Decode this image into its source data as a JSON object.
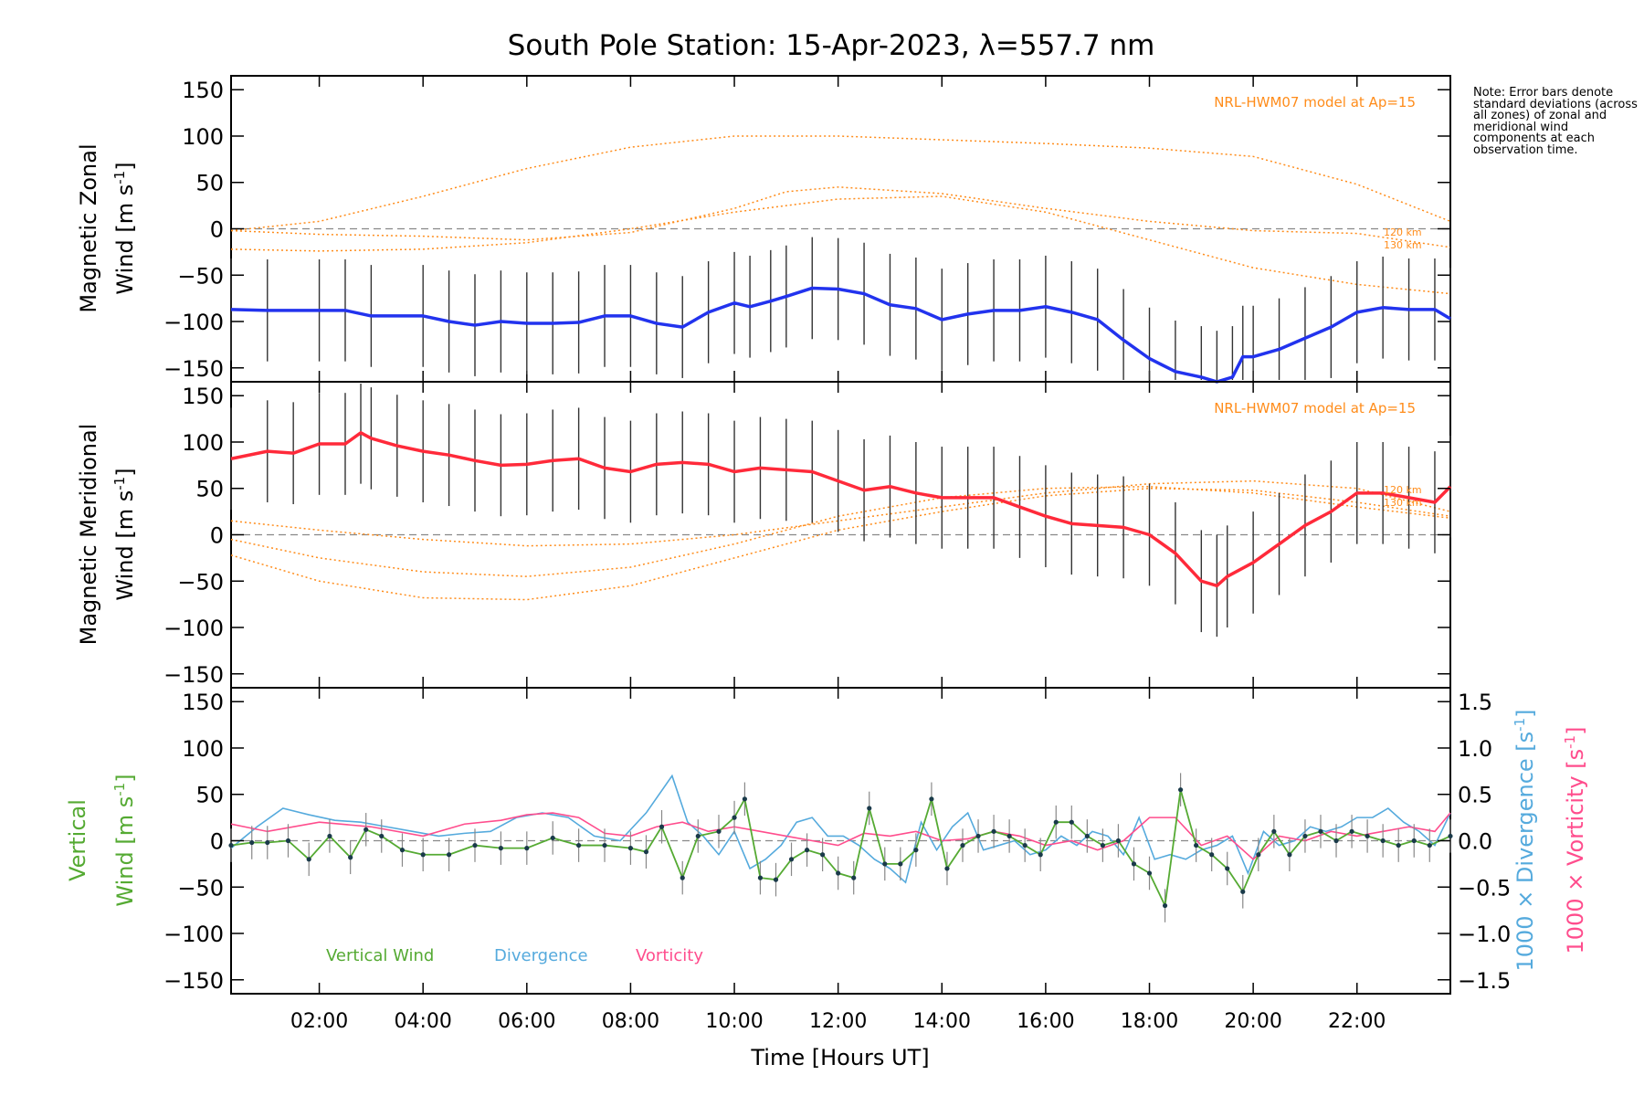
{
  "title": "South Pole Station: 15-Apr-2023, λ=557.7 nm",
  "note": "Note: Error bars denote standard deviations (across all zones) of zonal and meridional wind components at each observation time.",
  "colors": {
    "zonal": "#2233ee",
    "meridional": "#ff2a3a",
    "model": "#ff8c1a",
    "vertical": "#55aa33",
    "divergence": "#55aadd",
    "vorticity": "#ff4d8d",
    "zero": "#888888",
    "errbar": "#333333"
  },
  "chart_data": [
    {
      "type": "line",
      "panel": "zonal",
      "ylabel_line1": "Magnetic Zonal",
      "ylabel_line2": "Wind",
      "ylabel_units": "[m s",
      "ylabel_exp": "-1",
      "ylabel_close": "]",
      "model_label": "NRL-HWM07 model at Ap=15",
      "model_alt_labels": [
        "120 km",
        "130 km"
      ],
      "ylim": [
        -165,
        165
      ],
      "yticks": [
        150,
        100,
        50,
        0,
        -50,
        -100,
        -150
      ],
      "xlim": [
        0.3,
        23.8
      ],
      "series": [
        {
          "name": "Zonal Wind",
          "x": [
            0.3,
            1.0,
            2.0,
            2.5,
            3.0,
            4.0,
            4.5,
            5.0,
            5.5,
            6.0,
            6.5,
            7.0,
            7.5,
            8.0,
            8.5,
            9.0,
            9.5,
            10.0,
            10.3,
            10.7,
            11.0,
            11.5,
            12.0,
            12.5,
            13.0,
            13.5,
            14.0,
            14.5,
            15.0,
            15.5,
            16.0,
            16.5,
            17.0,
            17.5,
            18.0,
            18.5,
            19.0,
            19.3,
            19.6,
            19.8,
            20.0,
            20.5,
            21.0,
            21.5,
            22.0,
            22.5,
            23.0,
            23.5,
            23.8
          ],
          "y": [
            -87,
            -88,
            -88,
            -88,
            -94,
            -94,
            -100,
            -104,
            -100,
            -102,
            -102,
            -101,
            -94,
            -94,
            -102,
            -106,
            -90,
            -80,
            -84,
            -78,
            -73,
            -64,
            -65,
            -70,
            -82,
            -86,
            -98,
            -92,
            -88,
            -88,
            -84,
            -90,
            -98,
            -120,
            -140,
            -154,
            -160,
            -165,
            -160,
            -138,
            -138,
            -130,
            -118,
            -106,
            -90,
            -85,
            -87,
            -87,
            -97
          ]
        },
        {
          "name": "NRL-HWM07 model A",
          "x": [
            0.3,
            2,
            4,
            6,
            8,
            10,
            12,
            14,
            16,
            18,
            20,
            22,
            23.8
          ],
          "y": [
            -2,
            8,
            35,
            65,
            88,
            100,
            100,
            96,
            92,
            87,
            78,
            48,
            8
          ]
        },
        {
          "name": "NRL-HWM07 model B",
          "x": [
            0.3,
            2,
            4,
            6,
            8,
            10,
            11,
            12,
            14,
            16,
            18,
            20,
            22,
            23.8
          ],
          "y": [
            -2,
            -6,
            -8,
            -12,
            -4,
            22,
            40,
            45,
            38,
            22,
            8,
            -2,
            -5,
            -20
          ]
        },
        {
          "name": "NRL-HWM07 model C",
          "x": [
            0.3,
            2,
            4,
            6,
            8,
            10,
            12,
            14,
            16,
            18,
            20,
            22,
            23.8
          ],
          "y": [
            -22,
            -24,
            -22,
            -15,
            0,
            18,
            32,
            35,
            18,
            -12,
            -42,
            -60,
            -70
          ]
        }
      ]
    },
    {
      "type": "line",
      "panel": "meridional",
      "ylabel_line1": "Magnetic Meridional",
      "ylabel_line2": "Wind",
      "ylabel_units": "[m s",
      "ylabel_exp": "-1",
      "ylabel_close": "]",
      "model_label": "NRL-HWM07 model at Ap=15",
      "model_alt_labels": [
        "120 km",
        "130 km"
      ],
      "ylim": [
        -165,
        165
      ],
      "yticks": [
        150,
        100,
        50,
        0,
        -50,
        -100,
        -150
      ],
      "xlim": [
        0.3,
        23.8
      ],
      "series": [
        {
          "name": "Meridional Wind",
          "x": [
            0.3,
            1.0,
            1.5,
            2.0,
            2.5,
            2.8,
            3.0,
            3.5,
            4.0,
            4.5,
            5.0,
            5.5,
            6.0,
            6.5,
            7.0,
            7.5,
            8.0,
            8.5,
            9.0,
            9.5,
            10.0,
            10.5,
            11.0,
            11.5,
            12.0,
            12.5,
            13.0,
            13.5,
            14.0,
            14.5,
            15.0,
            15.5,
            16.0,
            16.5,
            17.0,
            17.5,
            18.0,
            18.5,
            19.0,
            19.3,
            19.5,
            20.0,
            20.5,
            21.0,
            21.5,
            22.0,
            22.5,
            23.0,
            23.5,
            23.8
          ],
          "y": [
            82,
            90,
            88,
            98,
            98,
            110,
            104,
            96,
            90,
            86,
            80,
            75,
            76,
            80,
            82,
            72,
            68,
            76,
            78,
            76,
            68,
            72,
            70,
            68,
            58,
            48,
            52,
            45,
            40,
            40,
            40,
            30,
            20,
            12,
            10,
            8,
            0,
            -20,
            -50,
            -55,
            -45,
            -30,
            -10,
            10,
            25,
            45,
            45,
            40,
            35,
            52
          ]
        },
        {
          "name": "NRL-HWM07 model A",
          "x": [
            0.3,
            2,
            4,
            6,
            8,
            10,
            12,
            14,
            16,
            18,
            20,
            22,
            23.8
          ],
          "y": [
            15,
            5,
            -5,
            -12,
            -10,
            0,
            15,
            30,
            45,
            55,
            58,
            50,
            25
          ]
        },
        {
          "name": "NRL-HWM07 model B",
          "x": [
            0.3,
            2,
            4,
            6,
            8,
            10,
            12,
            14,
            16,
            18,
            20,
            22,
            23.8
          ],
          "y": [
            -5,
            -25,
            -40,
            -45,
            -35,
            -10,
            20,
            40,
            50,
            52,
            45,
            30,
            18
          ]
        },
        {
          "name": "NRL-HWM07 model C",
          "x": [
            0.3,
            2,
            4,
            6,
            8,
            10,
            12,
            14,
            16,
            18,
            20,
            22,
            23.8
          ],
          "y": [
            -22,
            -50,
            -68,
            -70,
            -55,
            -25,
            5,
            25,
            42,
            50,
            48,
            35,
            20
          ]
        }
      ]
    },
    {
      "type": "line",
      "panel": "vertical",
      "ylabel_line1": "Vertical",
      "ylabel_line2": "Wind",
      "ylabel_units": "[m s",
      "ylabel_exp": "-1",
      "ylabel_close": "]",
      "right_label_div": "1000 × Divergence",
      "right_label_vort": "1000 × Vorticity",
      "right_units": "[s",
      "right_exp": "-1",
      "right_close": "]",
      "ylim": [
        -165,
        165
      ],
      "yticks": [
        150,
        100,
        50,
        0,
        -50,
        -100,
        -150
      ],
      "y2lim": [
        -1.65,
        1.65
      ],
      "y2ticks": [
        "1.5",
        "1.0",
        "0.5",
        "0.0",
        "−0.5",
        "−1.0",
        "−1.5"
      ],
      "y2tickvals": [
        1.5,
        1.0,
        0.5,
        0.0,
        -0.5,
        -1.0,
        -1.5
      ],
      "xlim": [
        0.3,
        23.8
      ],
      "xlabel": "Time [Hours UT]",
      "xticks": [
        "02:00",
        "04:00",
        "06:00",
        "08:00",
        "10:00",
        "12:00",
        "14:00",
        "16:00",
        "18:00",
        "20:00",
        "22:00"
      ],
      "xtickvals": [
        2,
        4,
        6,
        8,
        10,
        12,
        14,
        16,
        18,
        20,
        22
      ],
      "legend": [
        "Vertical Wind",
        "Divergence",
        "Vorticity"
      ],
      "series": [
        {
          "name": "Vertical Wind",
          "x": [
            0.3,
            0.7,
            1.0,
            1.4,
            1.8,
            2.2,
            2.6,
            2.9,
            3.2,
            3.6,
            4.0,
            4.5,
            5.0,
            5.5,
            6.0,
            6.5,
            7.0,
            7.5,
            8.0,
            8.3,
            8.6,
            9.0,
            9.3,
            9.7,
            10.0,
            10.2,
            10.5,
            10.8,
            11.1,
            11.4,
            11.7,
            12.0,
            12.3,
            12.6,
            12.9,
            13.2,
            13.5,
            13.8,
            14.1,
            14.4,
            14.7,
            15.0,
            15.3,
            15.6,
            15.9,
            16.2,
            16.5,
            16.8,
            17.1,
            17.4,
            17.7,
            18.0,
            18.3,
            18.6,
            18.9,
            19.2,
            19.5,
            19.8,
            20.1,
            20.4,
            20.7,
            21.0,
            21.3,
            21.6,
            21.9,
            22.2,
            22.5,
            22.8,
            23.1,
            23.4,
            23.8
          ],
          "y": [
            -5,
            -2,
            -2,
            0,
            -20,
            5,
            -18,
            12,
            5,
            -10,
            -15,
            -15,
            -5,
            -8,
            -8,
            3,
            -5,
            -5,
            -8,
            -12,
            15,
            -40,
            5,
            10,
            25,
            45,
            -40,
            -42,
            -20,
            -10,
            -15,
            -35,
            -40,
            35,
            -25,
            -25,
            -10,
            45,
            -30,
            -5,
            5,
            10,
            5,
            -5,
            -15,
            20,
            20,
            5,
            -5,
            0,
            -25,
            -35,
            -70,
            55,
            -5,
            -15,
            -30,
            -55,
            -15,
            10,
            -15,
            5,
            10,
            0,
            10,
            5,
            0,
            -5,
            0,
            -5,
            5
          ]
        },
        {
          "name": "Divergence",
          "x": [
            0.3,
            0.8,
            1.3,
            1.8,
            2.3,
            2.8,
            3.3,
            3.8,
            4.3,
            4.8,
            5.3,
            5.8,
            6.3,
            6.8,
            7.3,
            7.8,
            8.3,
            8.8,
            9.1,
            9.4,
            9.7,
            10.0,
            10.3,
            10.6,
            10.9,
            11.2,
            11.5,
            11.8,
            12.1,
            12.4,
            12.7,
            13.0,
            13.3,
            13.6,
            13.9,
            14.2,
            14.5,
            14.8,
            15.1,
            15.4,
            15.7,
            16.0,
            16.3,
            16.6,
            16.9,
            17.2,
            17.5,
            17.8,
            18.1,
            18.4,
            18.7,
            19.0,
            19.3,
            19.6,
            19.9,
            20.2,
            20.5,
            20.8,
            21.1,
            21.4,
            21.7,
            22.0,
            22.3,
            22.6,
            22.9,
            23.2,
            23.5,
            23.8
          ],
          "y": [
            -0.08,
            0.15,
            0.35,
            0.28,
            0.22,
            0.2,
            0.15,
            0.1,
            0.05,
            0.08,
            0.1,
            0.25,
            0.3,
            0.25,
            0.05,
            0.0,
            0.3,
            0.7,
            0.2,
            0.05,
            -0.15,
            0.1,
            -0.3,
            -0.2,
            -0.05,
            0.2,
            0.25,
            0.05,
            0.05,
            -0.05,
            -0.2,
            -0.3,
            -0.45,
            0.2,
            -0.1,
            0.15,
            0.3,
            -0.1,
            -0.05,
            0.0,
            -0.15,
            -0.1,
            0.05,
            -0.05,
            0.1,
            0.05,
            -0.15,
            0.25,
            -0.2,
            -0.15,
            -0.2,
            -0.1,
            -0.05,
            0.05,
            -0.35,
            0.1,
            -0.05,
            0.0,
            0.15,
            0.1,
            0.15,
            0.25,
            0.25,
            0.35,
            0.2,
            0.1,
            -0.05,
            0.3
          ]
        },
        {
          "name": "Vorticity",
          "x": [
            0.3,
            1.0,
            2.0,
            3.0,
            4.0,
            4.8,
            5.5,
            6.0,
            6.5,
            7.0,
            7.5,
            8.0,
            8.5,
            9.0,
            9.5,
            10.0,
            10.5,
            11.0,
            11.5,
            12.0,
            12.5,
            13.0,
            13.5,
            14.0,
            14.5,
            15.0,
            15.5,
            16.0,
            16.5,
            17.0,
            17.5,
            18.0,
            18.5,
            19.0,
            19.5,
            20.0,
            20.5,
            21.0,
            21.5,
            22.0,
            22.5,
            23.0,
            23.5,
            23.8
          ],
          "y": [
            0.18,
            0.1,
            0.2,
            0.15,
            0.05,
            0.18,
            0.22,
            0.28,
            0.3,
            0.25,
            0.08,
            0.05,
            0.15,
            0.2,
            0.1,
            0.15,
            0.1,
            0.05,
            0.0,
            -0.05,
            0.08,
            0.05,
            0.1,
            0.0,
            0.02,
            0.1,
            0.05,
            -0.05,
            0.0,
            -0.1,
            0.0,
            0.25,
            0.25,
            -0.05,
            0.05,
            -0.2,
            0.05,
            0.0,
            0.1,
            0.05,
            0.1,
            0.15,
            0.1,
            0.3
          ]
        }
      ]
    }
  ]
}
